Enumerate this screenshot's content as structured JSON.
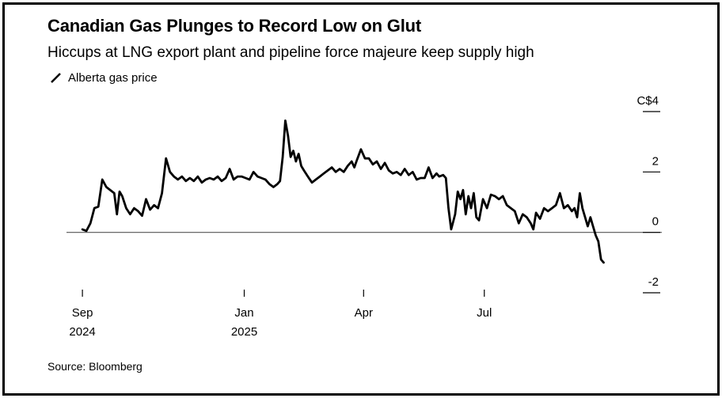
{
  "chart_data": {
    "type": "line",
    "title": "Canadian Gas Plunges to Record Low on Glut",
    "subtitle": "Hiccups at LNG export plant and pipeline force majeure keep supply high",
    "source": "Source: Bloomberg",
    "series": [
      {
        "name": "Alberta gas price",
        "color": "#000000",
        "points": [
          [
            "2024-09-01",
            0.1
          ],
          [
            "2024-09-04",
            0.05
          ],
          [
            "2024-09-07",
            0.3
          ],
          [
            "2024-09-10",
            0.8
          ],
          [
            "2024-09-13",
            0.85
          ],
          [
            "2024-09-16",
            1.75
          ],
          [
            "2024-09-19",
            1.5
          ],
          [
            "2024-09-22",
            1.4
          ],
          [
            "2024-09-25",
            1.3
          ],
          [
            "2024-09-27",
            0.6
          ],
          [
            "2024-09-29",
            1.35
          ],
          [
            "2024-10-01",
            1.2
          ],
          [
            "2024-10-04",
            0.8
          ],
          [
            "2024-10-07",
            0.6
          ],
          [
            "2024-10-10",
            0.8
          ],
          [
            "2024-10-13",
            0.7
          ],
          [
            "2024-10-16",
            0.55
          ],
          [
            "2024-10-19",
            1.1
          ],
          [
            "2024-10-22",
            0.75
          ],
          [
            "2024-10-25",
            0.9
          ],
          [
            "2024-10-28",
            0.8
          ],
          [
            "2024-10-31",
            1.3
          ],
          [
            "2024-11-03",
            2.45
          ],
          [
            "2024-11-06",
            2.0
          ],
          [
            "2024-11-09",
            1.85
          ],
          [
            "2024-11-12",
            1.75
          ],
          [
            "2024-11-15",
            1.85
          ],
          [
            "2024-11-18",
            1.7
          ],
          [
            "2024-11-21",
            1.8
          ],
          [
            "2024-11-24",
            1.7
          ],
          [
            "2024-11-27",
            1.85
          ],
          [
            "2024-11-30",
            1.65
          ],
          [
            "2024-12-03",
            1.75
          ],
          [
            "2024-12-06",
            1.8
          ],
          [
            "2024-12-09",
            1.75
          ],
          [
            "2024-12-12",
            1.85
          ],
          [
            "2024-12-15",
            1.7
          ],
          [
            "2024-12-18",
            1.8
          ],
          [
            "2024-12-21",
            2.1
          ],
          [
            "2024-12-24",
            1.75
          ],
          [
            "2024-12-27",
            1.85
          ],
          [
            "2024-12-30",
            1.85
          ],
          [
            "2025-01-02",
            1.8
          ],
          [
            "2025-01-05",
            1.75
          ],
          [
            "2025-01-08",
            2.0
          ],
          [
            "2025-01-11",
            1.85
          ],
          [
            "2025-01-14",
            1.8
          ],
          [
            "2025-01-17",
            1.75
          ],
          [
            "2025-01-20",
            1.6
          ],
          [
            "2025-01-23",
            1.5
          ],
          [
            "2025-01-26",
            1.6
          ],
          [
            "2025-01-28",
            1.7
          ],
          [
            "2025-01-30",
            2.5
          ],
          [
            "2025-02-01",
            3.7
          ],
          [
            "2025-02-03",
            3.2
          ],
          [
            "2025-02-05",
            2.5
          ],
          [
            "2025-02-07",
            2.7
          ],
          [
            "2025-02-09",
            2.35
          ],
          [
            "2025-02-11",
            2.6
          ],
          [
            "2025-02-13",
            2.2
          ],
          [
            "2025-02-15",
            2.05
          ],
          [
            "2025-02-18",
            1.85
          ],
          [
            "2025-02-21",
            1.65
          ],
          [
            "2025-02-24",
            1.75
          ],
          [
            "2025-02-27",
            1.85
          ],
          [
            "2025-03-02",
            1.95
          ],
          [
            "2025-03-05",
            2.05
          ],
          [
            "2025-03-08",
            2.15
          ],
          [
            "2025-03-11",
            2.0
          ],
          [
            "2025-03-14",
            2.1
          ],
          [
            "2025-03-17",
            2.0
          ],
          [
            "2025-03-20",
            2.2
          ],
          [
            "2025-03-23",
            2.35
          ],
          [
            "2025-03-25",
            2.15
          ],
          [
            "2025-03-27",
            2.4
          ],
          [
            "2025-03-30",
            2.75
          ],
          [
            "2025-04-02",
            2.45
          ],
          [
            "2025-04-05",
            2.45
          ],
          [
            "2025-04-08",
            2.25
          ],
          [
            "2025-04-11",
            2.35
          ],
          [
            "2025-04-14",
            2.1
          ],
          [
            "2025-04-17",
            2.3
          ],
          [
            "2025-04-20",
            2.05
          ],
          [
            "2025-04-23",
            1.95
          ],
          [
            "2025-04-26",
            2.0
          ],
          [
            "2025-04-29",
            1.9
          ],
          [
            "2025-05-02",
            2.1
          ],
          [
            "2025-05-05",
            1.9
          ],
          [
            "2025-05-08",
            2.0
          ],
          [
            "2025-05-11",
            1.75
          ],
          [
            "2025-05-14",
            1.8
          ],
          [
            "2025-05-17",
            1.8
          ],
          [
            "2025-05-20",
            2.15
          ],
          [
            "2025-05-23",
            1.8
          ],
          [
            "2025-05-26",
            1.95
          ],
          [
            "2025-05-28",
            1.85
          ],
          [
            "2025-05-31",
            1.9
          ],
          [
            "2025-06-02",
            1.8
          ],
          [
            "2025-06-04",
            0.8
          ],
          [
            "2025-06-06",
            0.1
          ],
          [
            "2025-06-09",
            0.6
          ],
          [
            "2025-06-11",
            1.35
          ],
          [
            "2025-06-13",
            1.1
          ],
          [
            "2025-06-15",
            1.4
          ],
          [
            "2025-06-17",
            0.6
          ],
          [
            "2025-06-19",
            1.2
          ],
          [
            "2025-06-21",
            0.8
          ],
          [
            "2025-06-23",
            1.3
          ],
          [
            "2025-06-25",
            0.5
          ],
          [
            "2025-06-27",
            0.4
          ],
          [
            "2025-06-30",
            1.1
          ],
          [
            "2025-07-03",
            0.8
          ],
          [
            "2025-07-06",
            1.25
          ],
          [
            "2025-07-09",
            1.2
          ],
          [
            "2025-07-12",
            1.1
          ],
          [
            "2025-07-15",
            1.2
          ],
          [
            "2025-07-18",
            0.9
          ],
          [
            "2025-07-21",
            0.8
          ],
          [
            "2025-07-24",
            0.7
          ],
          [
            "2025-07-27",
            0.3
          ],
          [
            "2025-07-30",
            0.6
          ],
          [
            "2025-08-02",
            0.5
          ],
          [
            "2025-08-05",
            0.3
          ],
          [
            "2025-08-07",
            0.1
          ],
          [
            "2025-08-09",
            0.65
          ],
          [
            "2025-08-12",
            0.45
          ],
          [
            "2025-08-15",
            0.8
          ],
          [
            "2025-08-18",
            0.7
          ],
          [
            "2025-08-21",
            0.8
          ],
          [
            "2025-08-24",
            0.9
          ],
          [
            "2025-08-27",
            1.3
          ],
          [
            "2025-08-30",
            0.8
          ],
          [
            "2025-09-02",
            0.9
          ],
          [
            "2025-09-05",
            0.7
          ],
          [
            "2025-09-07",
            0.8
          ],
          [
            "2025-09-09",
            0.5
          ],
          [
            "2025-09-11",
            1.3
          ],
          [
            "2025-09-13",
            0.8
          ],
          [
            "2025-09-15",
            0.5
          ],
          [
            "2025-09-17",
            0.2
          ],
          [
            "2025-09-19",
            0.5
          ],
          [
            "2025-09-21",
            0.2
          ],
          [
            "2025-09-23",
            -0.1
          ],
          [
            "2025-09-25",
            -0.3
          ],
          [
            "2025-09-27",
            -0.9
          ],
          [
            "2025-09-29",
            -1.0
          ]
        ]
      }
    ],
    "x_ticks": [
      {
        "date": "2024-09-01",
        "label": "Sep",
        "year": "2024"
      },
      {
        "date": "2025-01-01",
        "label": "Jan",
        "year": "2025"
      },
      {
        "date": "2025-04-01",
        "label": "Apr",
        "year": ""
      },
      {
        "date": "2025-07-01",
        "label": "Jul",
        "year": ""
      }
    ],
    "y_ticks": [
      {
        "value": 4,
        "label": "C$4"
      },
      {
        "value": 2,
        "label": "2"
      },
      {
        "value": 0,
        "label": "0"
      },
      {
        "value": -2,
        "label": "-2"
      }
    ],
    "ylim": [
      -2,
      4
    ],
    "xlim": [
      "2024-08-20",
      "2025-10-13"
    ],
    "zero_line": true,
    "grid": false,
    "legend_position": "top-left"
  }
}
